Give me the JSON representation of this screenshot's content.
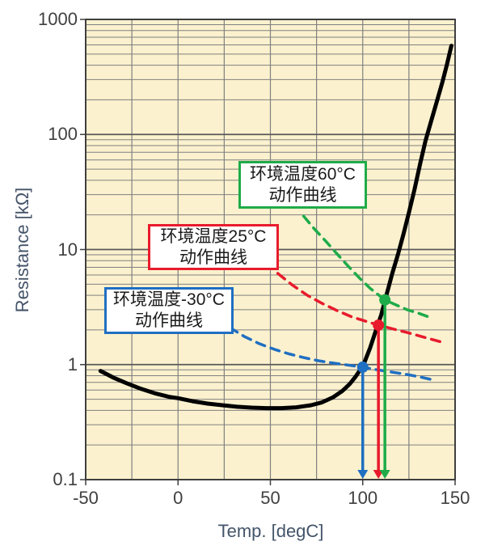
{
  "figure": {
    "plot_bg": "#FBF1CE",
    "grid_minor_color": "#808080",
    "grid_major_color": "#595959",
    "border_color": "#3F3F3F",
    "tick_label_color": "#404040",
    "axis_title_color": "#44546A"
  },
  "axes": {
    "xlabel": "Temp. [degC]",
    "ylabel": "Resistance [kΩ]"
  },
  "callouts": [
    {
      "line1": "环境温度60°C",
      "line2": "动作曲线",
      "color": "#1EAB49"
    },
    {
      "line1": "环境温度25°C",
      "line2": "动作曲线",
      "color": "#E81B2D"
    },
    {
      "line1": "环境温度-30°C",
      "line2": "动作曲线",
      "color": "#1F6FC2"
    }
  ],
  "chart_data": {
    "type": "line",
    "xlabel": "Temp. [degC]",
    "ylabel": "Resistance [kΩ]",
    "xlim": [
      -50,
      150
    ],
    "ylim": [
      0.1,
      1000
    ],
    "y_scale": "log10",
    "grid": "log minor+major horizontal, vertical every 25 degC",
    "legend_position": "none",
    "x_ticks": [
      {
        "v": -50,
        "label": "-50"
      },
      {
        "v": 0,
        "label": "0"
      },
      {
        "v": 50,
        "label": "50"
      },
      {
        "v": 100,
        "label": "100"
      },
      {
        "v": 150,
        "label": "150"
      }
    ],
    "y_ticks": [
      {
        "v": 1000,
        "label": "1000"
      },
      {
        "v": 100,
        "label": "100"
      },
      {
        "v": 10,
        "label": "10"
      },
      {
        "v": 1,
        "label": "1"
      },
      {
        "v": 0.1,
        "label": "0.1"
      }
    ],
    "series": [
      {
        "name": "operating-curve-ambient-minus30C",
        "color": "#1F6FC2",
        "width": 3.5,
        "dash": "11 8",
        "points": [
          [
            28,
            2.1
          ],
          [
            36,
            1.75
          ],
          [
            44,
            1.52
          ],
          [
            52,
            1.36
          ],
          [
            60,
            1.24
          ],
          [
            68,
            1.15
          ],
          [
            76,
            1.08
          ],
          [
            84,
            1.03
          ],
          [
            92,
            0.99
          ],
          [
            100,
            0.95
          ],
          [
            108,
            0.9
          ],
          [
            116,
            0.86
          ],
          [
            124,
            0.82
          ],
          [
            131,
            0.78
          ],
          [
            139,
            0.73
          ]
        ]
      },
      {
        "name": "operating-curve-ambient-25C",
        "color": "#E81B2D",
        "width": 3.5,
        "dash": "11 8",
        "points": [
          [
            54,
            6.2
          ],
          [
            62,
            4.9
          ],
          [
            70,
            4.0
          ],
          [
            78,
            3.4
          ],
          [
            86,
            2.95
          ],
          [
            94,
            2.6
          ],
          [
            101,
            2.4
          ],
          [
            108.5,
            2.2
          ],
          [
            116,
            2.05
          ],
          [
            124,
            1.9
          ],
          [
            132,
            1.75
          ],
          [
            142,
            1.58
          ]
        ]
      },
      {
        "name": "operating-curve-ambient-60C",
        "color": "#1EAB49",
        "width": 3.5,
        "dash": "11 8",
        "points": [
          [
            68,
            19.5
          ],
          [
            74,
            15
          ],
          [
            80,
            11.8
          ],
          [
            86,
            9.2
          ],
          [
            92,
            7.2
          ],
          [
            98,
            5.7
          ],
          [
            104,
            4.6
          ],
          [
            108,
            4.1
          ],
          [
            112,
            3.65
          ],
          [
            118,
            3.3
          ],
          [
            124,
            3.0
          ],
          [
            130,
            2.8
          ],
          [
            137,
            2.55
          ]
        ]
      },
      {
        "name": "resistance-temperature-characteristic",
        "color": "#000000",
        "width": 5,
        "dash": null,
        "points": [
          [
            -42,
            0.88
          ],
          [
            -35,
            0.77
          ],
          [
            -28,
            0.69
          ],
          [
            -20,
            0.615
          ],
          [
            -12,
            0.56
          ],
          [
            -5,
            0.525
          ],
          [
            0,
            0.51
          ],
          [
            8,
            0.48
          ],
          [
            16,
            0.458
          ],
          [
            24,
            0.443
          ],
          [
            32,
            0.43
          ],
          [
            40,
            0.422
          ],
          [
            48,
            0.418
          ],
          [
            56,
            0.418
          ],
          [
            64,
            0.425
          ],
          [
            72,
            0.443
          ],
          [
            78,
            0.47
          ],
          [
            84,
            0.52
          ],
          [
            89,
            0.59
          ],
          [
            93,
            0.68
          ],
          [
            96,
            0.78
          ],
          [
            99,
            0.92
          ],
          [
            101,
            1.05
          ],
          [
            104,
            1.4
          ],
          [
            107,
            1.95
          ],
          [
            110,
            2.7
          ],
          [
            112,
            3.6
          ],
          [
            114,
            4.7
          ],
          [
            116,
            6.2
          ],
          [
            119,
            9.0
          ],
          [
            122,
            13.5
          ],
          [
            125,
            21
          ],
          [
            128,
            33
          ],
          [
            131,
            55
          ],
          [
            134,
            88
          ],
          [
            137,
            130
          ],
          [
            140,
            190
          ],
          [
            143,
            280
          ],
          [
            145.5,
            400
          ],
          [
            148,
            590
          ]
        ]
      }
    ],
    "markers": [
      {
        "x": 100,
        "y": 0.95,
        "color": "#1F6FC2"
      },
      {
        "x": 108.5,
        "y": 2.2,
        "color": "#E81B2D"
      },
      {
        "x": 112,
        "y": 3.65,
        "color": "#1EAB49"
      }
    ],
    "arrows": [
      {
        "x": 100,
        "y_from": 0.95,
        "color": "#1F6FC2"
      },
      {
        "x": 108.5,
        "y_from": 2.2,
        "color": "#E81B2D"
      },
      {
        "x": 112,
        "y_from": 3.65,
        "color": "#1EAB49"
      }
    ]
  }
}
